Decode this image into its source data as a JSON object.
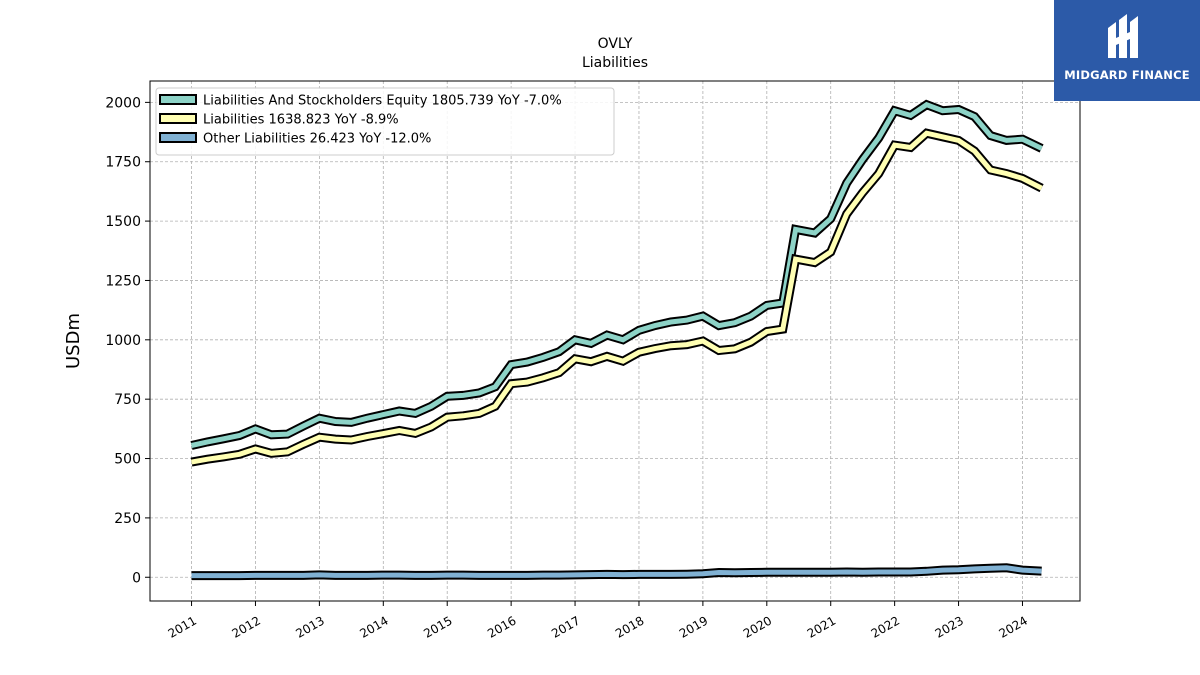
{
  "brand": {
    "name": "MIDGARD FINANCE"
  },
  "chart_data": {
    "type": "line",
    "title": "OVLY",
    "subtitle": "Liabilities",
    "xlabel": "",
    "ylabel": "USDm",
    "xlim": [
      2010.35,
      2024.9
    ],
    "ylim": [
      -100,
      2090
    ],
    "xticks": [
      "2011",
      "2012",
      "2013",
      "2014",
      "2015",
      "2016",
      "2017",
      "2018",
      "2019",
      "2020",
      "2021",
      "2022",
      "2023",
      "2024"
    ],
    "yticks": [
      0,
      250,
      500,
      750,
      1000,
      1250,
      1500,
      1750,
      2000
    ],
    "grid": true,
    "legend_position": "top-left",
    "x": [
      2011.0,
      2011.25,
      2011.5,
      2011.75,
      2012.0,
      2012.25,
      2012.5,
      2012.75,
      2013.0,
      2013.25,
      2013.5,
      2013.75,
      2014.0,
      2014.25,
      2014.5,
      2014.75,
      2015.0,
      2015.25,
      2015.5,
      2015.75,
      2016.0,
      2016.25,
      2016.5,
      2016.75,
      2017.0,
      2017.25,
      2017.5,
      2017.75,
      2018.0,
      2018.25,
      2018.5,
      2018.75,
      2019.0,
      2019.25,
      2019.5,
      2019.75,
      2020.0,
      2020.25,
      2020.45,
      2020.75,
      2021.0,
      2021.25,
      2021.5,
      2021.75,
      2022.0,
      2022.25,
      2022.5,
      2022.75,
      2023.0,
      2023.25,
      2023.5,
      2023.75,
      2024.0,
      2024.3
    ],
    "series": [
      {
        "name": "Liabilities And Stockholders Equity",
        "legend_label": "Liabilities And Stockholders Equity  1805.739 YoY -7.0%",
        "color": "#8dd3c7",
        "values": [
          555,
          570,
          583,
          597,
          625,
          600,
          603,
          637,
          670,
          656,
          652,
          670,
          685,
          700,
          690,
          720,
          762,
          766,
          776,
          802,
          895,
          906,
          926,
          950,
          1000,
          985,
          1020,
          1000,
          1040,
          1060,
          1075,
          1083,
          1100,
          1060,
          1072,
          1100,
          1145,
          1155,
          1465,
          1450,
          1510,
          1660,
          1760,
          1850,
          1965,
          1945,
          1990,
          1965,
          1970,
          1940,
          1860,
          1840,
          1845,
          1806
        ]
      },
      {
        "name": "Liabilities",
        "legend_label": "Liabilities  1638.823 YoY -8.9%",
        "color": "#ffffb3",
        "values": [
          485,
          497,
          507,
          518,
          540,
          522,
          528,
          560,
          590,
          582,
          578,
          593,
          605,
          618,
          606,
          633,
          674,
          680,
          690,
          720,
          815,
          822,
          840,
          862,
          920,
          908,
          930,
          910,
          948,
          963,
          975,
          980,
          995,
          955,
          962,
          990,
          1035,
          1045,
          1340,
          1325,
          1370,
          1530,
          1620,
          1700,
          1820,
          1810,
          1870,
          1855,
          1840,
          1795,
          1715,
          1700,
          1680,
          1639
        ]
      },
      {
        "name": "Other Liabilities",
        "legend_label": "Other Liabilities  26.423 YoY -12.0%",
        "color": "#80b1d3",
        "values": [
          7,
          7,
          7,
          7,
          8,
          8,
          8,
          8,
          10,
          8,
          8,
          8,
          9,
          9,
          8,
          8,
          9,
          9,
          8,
          8,
          8,
          8,
          9,
          9,
          10,
          11,
          12,
          11,
          12,
          12,
          12,
          13,
          15,
          20,
          19,
          20,
          21,
          21,
          21,
          21,
          21,
          22,
          21,
          22,
          22,
          22,
          25,
          30,
          32,
          35,
          38,
          40,
          30,
          26
        ]
      }
    ]
  }
}
